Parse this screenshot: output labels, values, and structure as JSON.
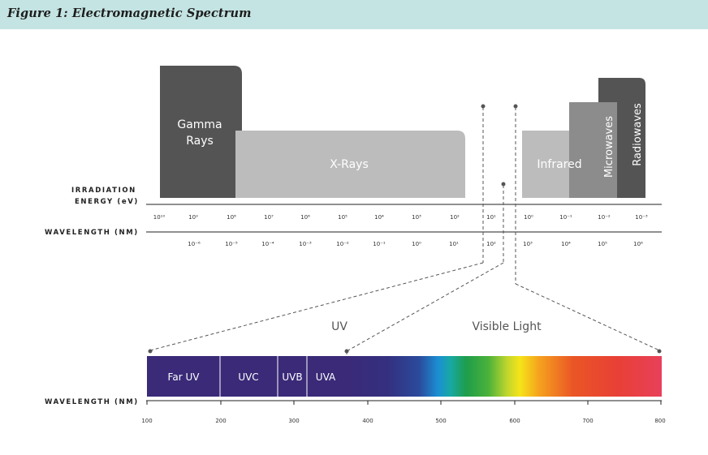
{
  "figure": {
    "title": "Figure 1: Electromagnetic Spectrum"
  },
  "bands": {
    "gamma_line1": "Gamma",
    "gamma_line2": "Rays",
    "xrays": "X-Rays",
    "infrared": "Infrared",
    "microwaves": "Microwaves",
    "radiowaves": "Radiowaves"
  },
  "axes": {
    "energy_label_line1": "IRRADIATION",
    "energy_label_line2": "ENERGY (eV)",
    "wavelength_label": "WAVELENGTH (NM)",
    "bottom_wavelength_label": "WAVELENGTH (NM)",
    "energy_ticks": [
      "10¹⁰",
      "10⁹",
      "10⁸",
      "10⁷",
      "10⁶",
      "10⁵",
      "10⁴",
      "10³",
      "10²",
      "10¹",
      "10⁰",
      "10⁻¹",
      "10⁻²",
      "10⁻³"
    ],
    "wavelength_ticks": [
      "10⁻⁶",
      "10⁻⁵",
      "10⁻⁴",
      "10⁻³",
      "10⁻²",
      "10⁻¹",
      "10⁰",
      "10¹",
      "10²",
      "10³",
      "10⁴",
      "10⁵",
      "10⁶"
    ],
    "bottom_ticks": [
      "100",
      "200",
      "300",
      "400",
      "500",
      "600",
      "700",
      "800"
    ]
  },
  "regions": {
    "uv": "UV",
    "visible": "Visible Light"
  },
  "uv_bands": [
    "Far UV",
    "UVC",
    "UVB",
    "UVA"
  ],
  "colors": {
    "gamma": "#545454",
    "xrays": "#bcbcbc",
    "infrared": "#bcbcbc",
    "microwaves": "#8c8c8c",
    "radiowaves": "#545454",
    "uv": "#3a2a78",
    "header": "#c3e4e2"
  }
}
